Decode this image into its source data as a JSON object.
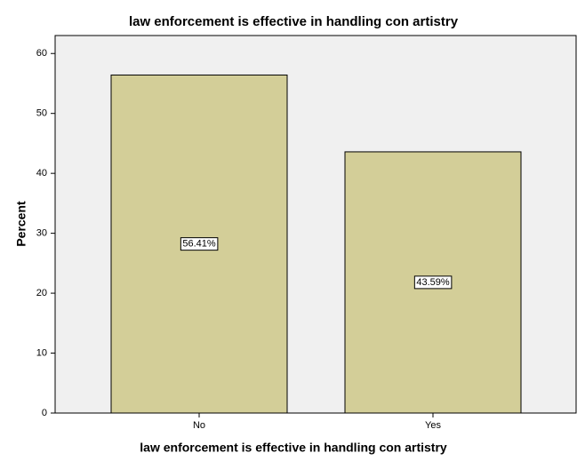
{
  "chart_data": {
    "type": "bar",
    "title": "law enforcement is effective in handling con artistry",
    "x_label": "law enforcement is effective in handling con artistry",
    "y_label": "Percent",
    "categories": [
      "No",
      "Yes"
    ],
    "values": [
      56.41,
      43.59
    ],
    "value_labels": [
      "56.41%",
      "43.59%"
    ],
    "color": "#d3ce98",
    "ylim": [
      0,
      63
    ],
    "yticks": [
      0,
      10,
      20,
      30,
      40,
      50,
      60
    ]
  }
}
